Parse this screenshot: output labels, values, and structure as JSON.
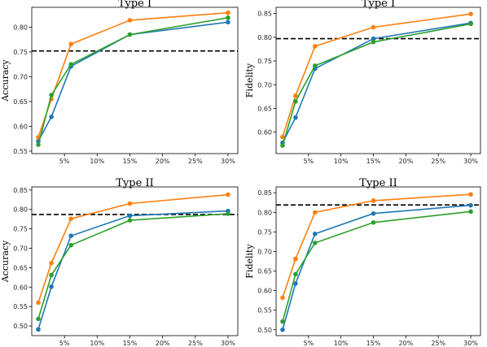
{
  "colors": {
    "blue": "#1f77b4",
    "orange": "#ff7f0e",
    "green": "#2ca02c",
    "ref": "#000000"
  },
  "chart_data": [
    {
      "type": "line",
      "title": "Type I",
      "ylabel": "Accuracy",
      "x": [
        1,
        3,
        6,
        15,
        30
      ],
      "xticks": [
        5,
        10,
        15,
        20,
        25,
        30
      ],
      "xtick_labels": [
        "5%",
        "10%",
        "15%",
        "20%",
        "25%",
        "30%"
      ],
      "xlim": [
        0,
        31.5
      ],
      "ylim": [
        0.545,
        0.84
      ],
      "yticks": [
        0.55,
        0.6,
        0.65,
        0.7,
        0.75,
        0.8
      ],
      "ytick_labels": [
        "0.55",
        "0.60",
        "0.65",
        "0.70",
        "0.75",
        "0.80"
      ],
      "reference_line": 0.752,
      "series": [
        {
          "color": "blue",
          "values": [
            0.57,
            0.619,
            0.721,
            0.785,
            0.81
          ]
        },
        {
          "color": "orange",
          "values": [
            0.578,
            0.655,
            0.766,
            0.814,
            0.829
          ]
        },
        {
          "color": "green",
          "values": [
            0.563,
            0.663,
            0.725,
            0.785,
            0.819
          ]
        }
      ]
    },
    {
      "type": "line",
      "title": "Type I",
      "ylabel": "Fidelity",
      "x": [
        1,
        3,
        6,
        15,
        30
      ],
      "xticks": [
        5,
        10,
        15,
        20,
        25,
        30
      ],
      "xtick_labels": [
        "5%",
        "10%",
        "15%",
        "20%",
        "25%",
        "30%"
      ],
      "xlim": [
        0,
        31.5
      ],
      "ylim": [
        0.555,
        0.863
      ],
      "yticks": [
        0.6,
        0.65,
        0.7,
        0.75,
        0.8,
        0.85
      ],
      "ytick_labels": [
        "0.60",
        "0.65",
        "0.70",
        "0.75",
        "0.80",
        "0.85"
      ],
      "reference_line": 0.797,
      "series": [
        {
          "color": "blue",
          "values": [
            0.578,
            0.631,
            0.734,
            0.797,
            0.83
          ]
        },
        {
          "color": "orange",
          "values": [
            0.59,
            0.677,
            0.781,
            0.821,
            0.849
          ]
        },
        {
          "color": "green",
          "values": [
            0.572,
            0.665,
            0.74,
            0.79,
            0.828
          ]
        }
      ]
    },
    {
      "type": "line",
      "title": "Type II",
      "ylabel": "Accuracy",
      "x": [
        1,
        3,
        6,
        15,
        30
      ],
      "xticks": [
        5,
        10,
        15,
        20,
        25,
        30
      ],
      "xtick_labels": [
        "5%",
        "10%",
        "15%",
        "20%",
        "25%",
        "30%"
      ],
      "xlim": [
        0,
        31.5
      ],
      "ylim": [
        0.475,
        0.858
      ],
      "yticks": [
        0.5,
        0.55,
        0.6,
        0.65,
        0.7,
        0.75,
        0.8,
        0.85
      ],
      "ytick_labels": [
        "0.50",
        "0.55",
        "0.60",
        "0.65",
        "0.70",
        "0.75",
        "0.80",
        "0.85"
      ],
      "reference_line": 0.787,
      "series": [
        {
          "color": "blue",
          "values": [
            0.491,
            0.601,
            0.732,
            0.784,
            0.796
          ]
        },
        {
          "color": "orange",
          "values": [
            0.56,
            0.662,
            0.776,
            0.815,
            0.838
          ]
        },
        {
          "color": "green",
          "values": [
            0.518,
            0.631,
            0.708,
            0.772,
            0.789
          ]
        }
      ]
    },
    {
      "type": "line",
      "title": "Type II",
      "ylabel": "Fidelity",
      "x": [
        1,
        3,
        6,
        15,
        30
      ],
      "xticks": [
        5,
        10,
        15,
        20,
        25,
        30
      ],
      "xtick_labels": [
        "5%",
        "10%",
        "15%",
        "20%",
        "25%",
        "30%"
      ],
      "xlim": [
        0,
        31.5
      ],
      "ylim": [
        0.485,
        0.865
      ],
      "yticks": [
        0.5,
        0.55,
        0.6,
        0.65,
        0.7,
        0.75,
        0.8,
        0.85
      ],
      "ytick_labels": [
        "0.50",
        "0.55",
        "0.60",
        "0.65",
        "0.70",
        "0.75",
        "0.80",
        "0.85"
      ],
      "reference_line": 0.819,
      "series": [
        {
          "color": "blue",
          "values": [
            0.5,
            0.618,
            0.745,
            0.797,
            0.818
          ]
        },
        {
          "color": "orange",
          "values": [
            0.582,
            0.681,
            0.8,
            0.83,
            0.846
          ]
        },
        {
          "color": "green",
          "values": [
            0.521,
            0.642,
            0.722,
            0.774,
            0.802
          ]
        }
      ]
    }
  ]
}
